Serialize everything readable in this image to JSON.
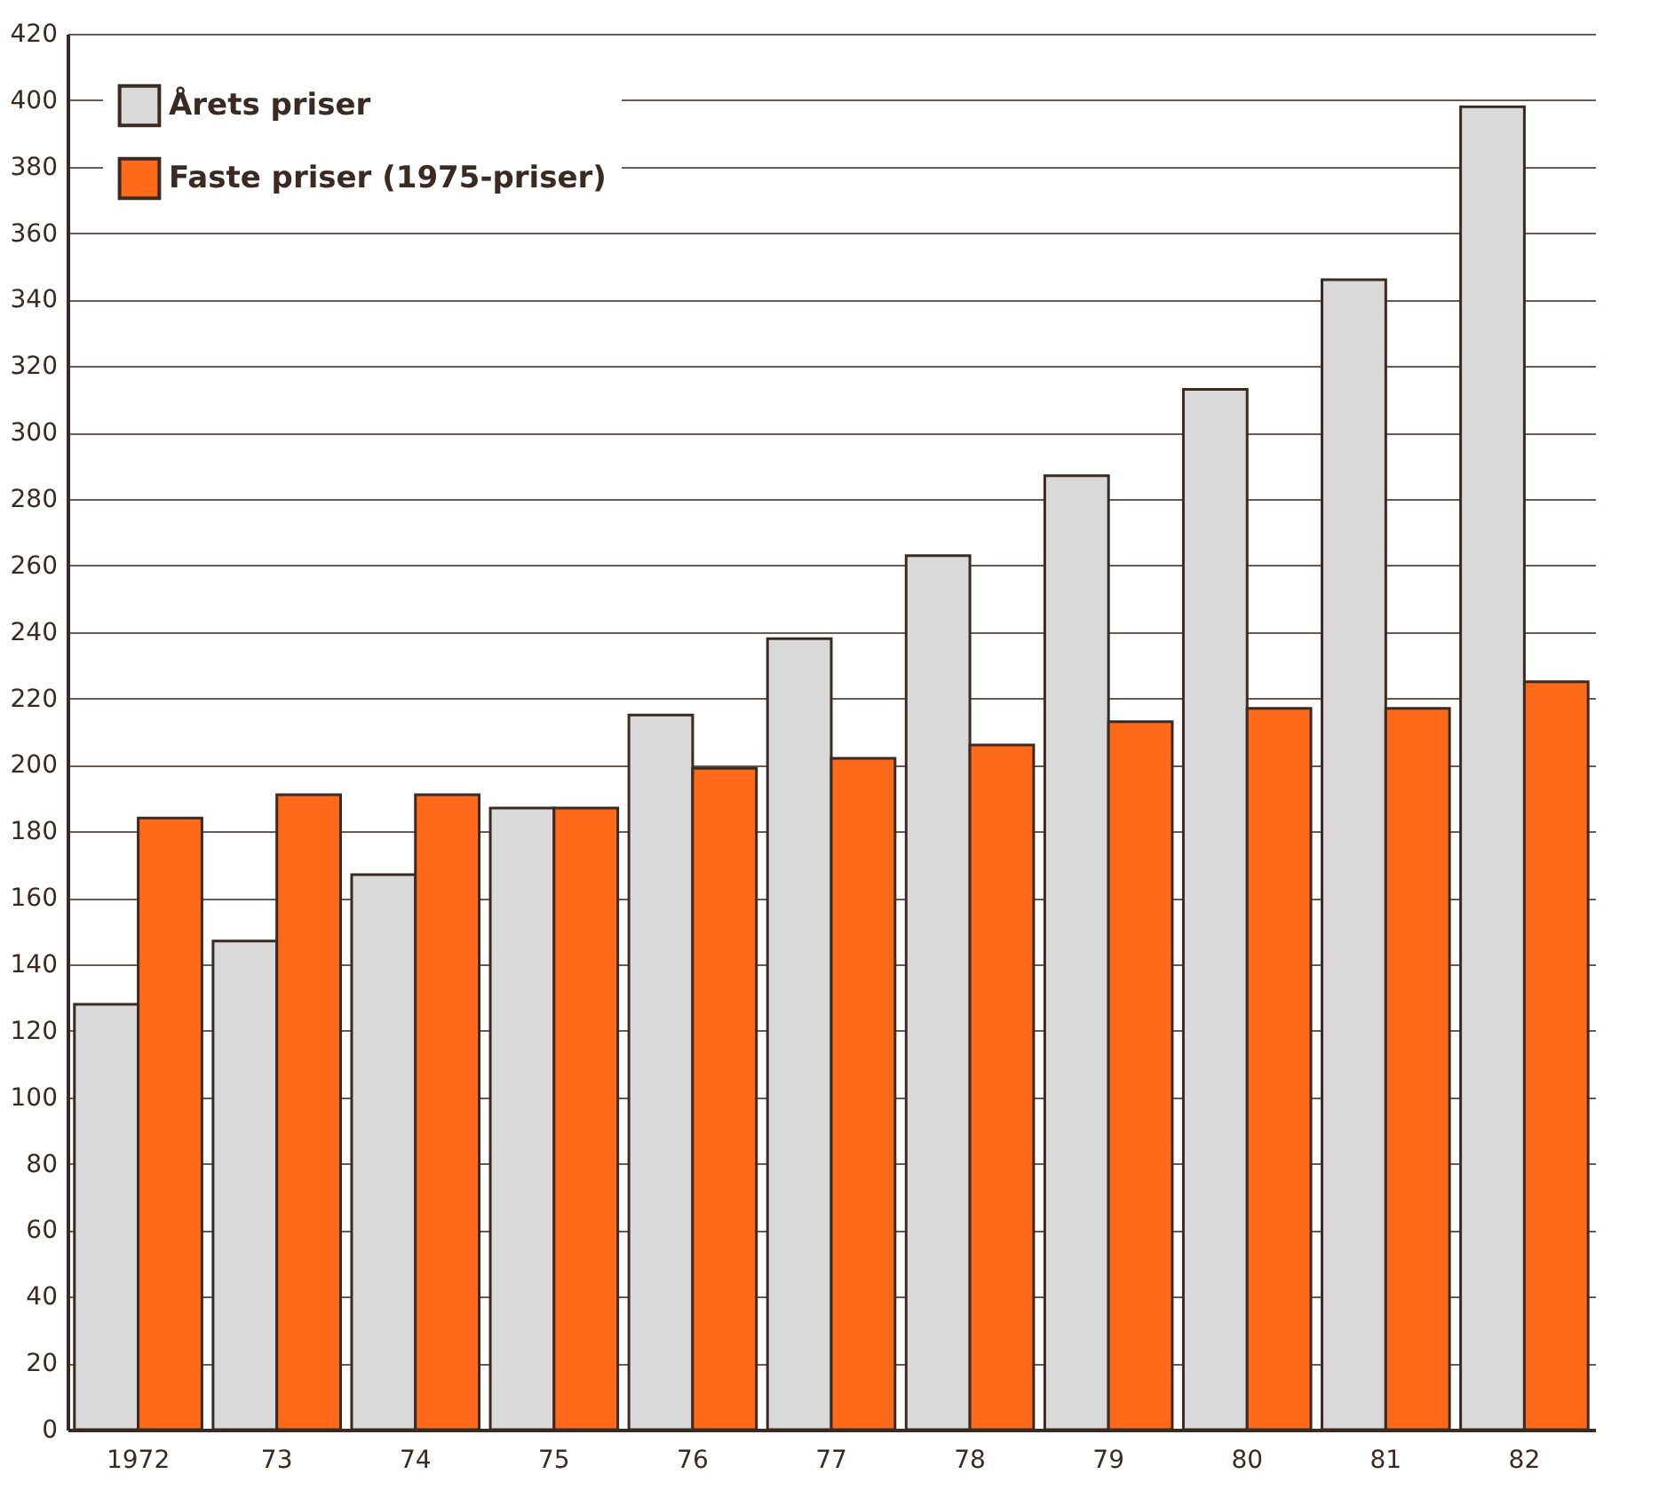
{
  "chart_data": {
    "type": "bar",
    "categories": [
      "1972",
      "73",
      "74",
      "75",
      "76",
      "77",
      "78",
      "79",
      "80",
      "81",
      "82"
    ],
    "series": [
      {
        "name": "Årets priser",
        "color": "#d9d9d9",
        "values": [
          128,
          147,
          167,
          187,
          215,
          238,
          263,
          287,
          313,
          346,
          398
        ]
      },
      {
        "name": "Faste priser (1975-priser)",
        "color": "#ff6a1a",
        "values": [
          184,
          191,
          191,
          187,
          199,
          202,
          206,
          213,
          217,
          217,
          225
        ]
      }
    ],
    "ylim": [
      0,
      420
    ],
    "yticks": [
      0,
      20,
      40,
      60,
      80,
      100,
      120,
      140,
      160,
      180,
      200,
      220,
      240,
      260,
      280,
      300,
      320,
      340,
      360,
      380,
      400,
      420
    ],
    "grid": "y",
    "legend": "top left"
  }
}
